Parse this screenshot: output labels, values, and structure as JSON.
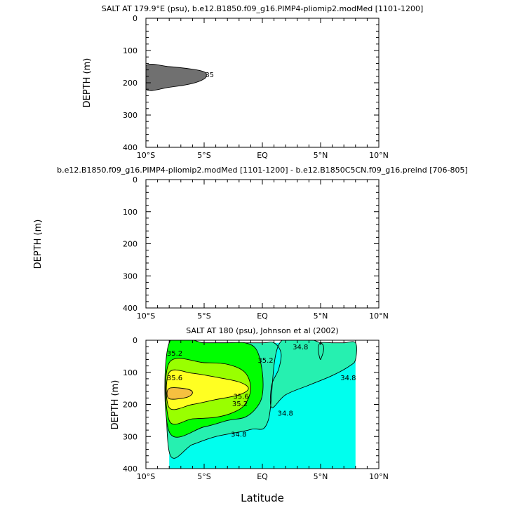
{
  "chart_data": [
    {
      "type": "area",
      "title": "SALT AT 179.9°E (psu), b.e12.B1850.f09_g16.PIMP4-pliomip2.modMed [1101-1200]",
      "xlabel": "",
      "ylabel": "DEPTH (m)",
      "x_ticks": [
        "10°S",
        "5°S",
        "EQ",
        "5°N",
        "10°N"
      ],
      "y_ticks": [
        "0",
        "100",
        "200",
        "300",
        "400"
      ],
      "xlim": [
        -10,
        10
      ],
      "ylim": [
        0,
        400
      ],
      "y_reversed": true,
      "grid": false,
      "regions": [
        {
          "color": "#707070",
          "label": "35",
          "lat": [
            -10,
            -8,
            -6,
            -5,
            -4.8,
            -5,
            -6,
            -8,
            -10
          ],
          "depth": [
            147,
            150,
            158,
            166,
            176,
            188,
            202,
            214,
            220
          ]
        }
      ]
    },
    {
      "type": "area",
      "title": "b.e12.B1850.f09_g16.PIMP4-pliomip2.modMed [1101-1200] - b.e12.B1850C5CN.f09_g16.preind [706-805]",
      "xlabel": "",
      "ylabel": "DEPTH (m)",
      "x_ticks": [
        "10°S",
        "5°S",
        "EQ",
        "5°N",
        "10°N"
      ],
      "y_ticks": [
        "0",
        "100",
        "200",
        "300",
        "400"
      ],
      "xlim": [
        -10,
        10
      ],
      "ylim": [
        0,
        400
      ],
      "y_reversed": true,
      "grid": false,
      "regions": []
    },
    {
      "type": "heatmap",
      "title": "SALT AT 180 (psu), Johnson et al (2002)",
      "xlabel": "Latitude",
      "ylabel": "DEPTH (m)",
      "x_ticks": [
        "10°S",
        "5°S",
        "EQ",
        "5°N",
        "10°N"
      ],
      "y_ticks": [
        "0",
        "100",
        "200",
        "300",
        "400"
      ],
      "xlim": [
        -10,
        10
      ],
      "ylim": [
        0,
        400
      ],
      "y_reversed": true,
      "grid": false,
      "data_lat_range": [
        -8,
        8
      ],
      "data_depth_range": [
        8,
        400
      ],
      "regions": [
        {
          "color": "#00ffee",
          "lat": [
            -8,
            8,
            8,
            -8
          ],
          "depth": [
            8,
            8,
            400,
            400
          ]
        },
        {
          "color": "#26f0b0",
          "lat": [
            -8,
            -6,
            -4,
            -2,
            0,
            1,
            1.6,
            1.4,
            0.8,
            0.8,
            2,
            4,
            6,
            7.5,
            8,
            8,
            7,
            6,
            5,
            4.8,
            5,
            5,
            1.5,
            0.5,
            -1,
            -4,
            -6,
            -8
          ],
          "depth": [
            8,
            8,
            8,
            8,
            8,
            8,
            40,
            90,
            140,
            210,
            170,
            140,
            110,
            80,
            60,
            8,
            8,
            8,
            8,
            30,
            60,
            8,
            8,
            250,
            278,
            300,
            325,
            348
          ]
        },
        {
          "color": "#00ff00",
          "lat": [
            -8,
            -5,
            -3,
            -1.5,
            -0.5,
            0,
            0,
            -0.5,
            -1.5,
            -3,
            -5,
            -8
          ],
          "depth": [
            8,
            8,
            8,
            8,
            30,
            100,
            170,
            210,
            240,
            250,
            270,
            285
          ]
        },
        {
          "color": "#99ff00",
          "lat": [
            -8,
            -5,
            -3,
            -1.5,
            -1,
            -1.5,
            -2.5,
            -4,
            -6,
            -8
          ],
          "depth": [
            70,
            70,
            75,
            100,
            150,
            200,
            225,
            240,
            245,
            250
          ]
        },
        {
          "color": "#ffff22",
          "lat": [
            -8,
            -6,
            -4,
            -2,
            -1.2,
            -2,
            -4,
            -6,
            -8
          ],
          "depth": [
            100,
            103,
            115,
            130,
            150,
            170,
            185,
            200,
            210
          ]
        },
        {
          "color": "#f5c040",
          "lat": [
            -8,
            -6.5,
            -6,
            -6.5,
            -8
          ],
          "depth": [
            150,
            152,
            163,
            178,
            182
          ]
        }
      ],
      "contour_labels": [
        {
          "text": "35.2",
          "lat": -8.2,
          "depth": 48
        },
        {
          "text": "35.6",
          "lat": -8.2,
          "depth": 125
        },
        {
          "text": "35.6",
          "lat": -2.5,
          "depth": 183
        },
        {
          "text": "35.2",
          "lat": -2.6,
          "depth": 205
        },
        {
          "text": "35.2",
          "lat": -0.4,
          "depth": 70
        },
        {
          "text": "34.8",
          "lat": 2.6,
          "depth": 28
        },
        {
          "text": "34.8",
          "lat": 6.7,
          "depth": 125
        },
        {
          "text": "34.8",
          "lat": 1.3,
          "depth": 235
        },
        {
          "text": "34.8",
          "lat": -2.7,
          "depth": 300
        }
      ]
    }
  ]
}
